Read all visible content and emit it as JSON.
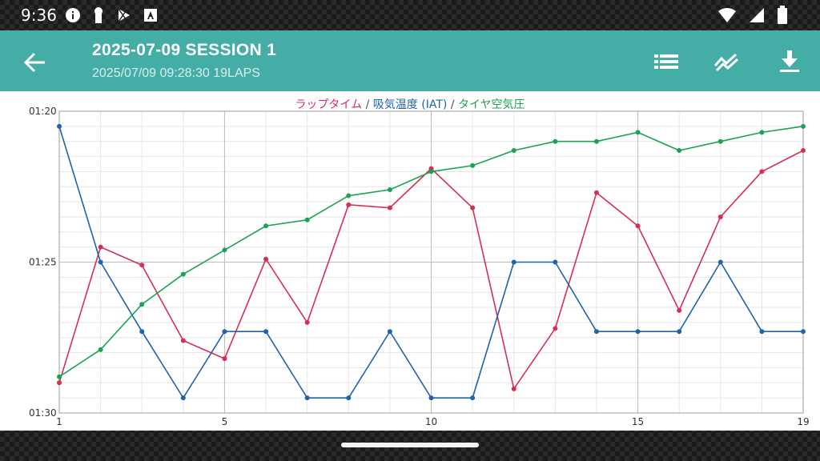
{
  "status": {
    "time": "9:36",
    "left_icons": [
      "info-icon",
      "keyhole-icon",
      "play-store-icon",
      "font-icon"
    ],
    "right_icons": [
      "wifi-icon",
      "signal-icon",
      "battery-icon"
    ]
  },
  "app_bar": {
    "title": "2025-07-09 SESSION 1",
    "subtitle": "2025/07/09 09:28:30 19LAPS",
    "back_icon": "arrow-back-icon",
    "actions": [
      "list-icon",
      "trend-icon",
      "download-icon"
    ]
  },
  "chart_data": {
    "type": "line",
    "title_parts": [
      {
        "text": "ラップタイム",
        "color": "#d42f55"
      },
      {
        "text": " / ",
        "color": "#555555"
      },
      {
        "text": "吸気温度 (IAT)",
        "color": "#1f63a8"
      },
      {
        "text": " / ",
        "color": "#555555"
      },
      {
        "text": "タイヤ空気圧",
        "color": "#1aa353"
      }
    ],
    "x_ticks": [
      "1",
      "5",
      "10",
      "15",
      "19"
    ],
    "x_tick_values": [
      1,
      5,
      10,
      15,
      19
    ],
    "y_ticks": [
      "01:20",
      "01:25",
      "01:30"
    ],
    "y_tick_values": [
      80,
      85,
      90
    ],
    "xlim": [
      1,
      19
    ],
    "ylim": [
      80,
      90
    ],
    "y_inverted": true,
    "grid": true,
    "x": [
      1,
      2,
      3,
      4,
      5,
      6,
      7,
      8,
      9,
      10,
      11,
      12,
      13,
      14,
      15,
      16,
      17,
      18,
      19
    ],
    "series": [
      {
        "name": "ラップタイム",
        "color": "#d42f55",
        "values": [
          89.0,
          84.5,
          85.1,
          87.6,
          88.2,
          84.9,
          87.0,
          83.1,
          83.2,
          81.9,
          83.2,
          89.2,
          87.2,
          82.7,
          83.8,
          86.6,
          83.5,
          82.0,
          81.3
        ]
      },
      {
        "name": "吸気温度 (IAT)",
        "color": "#1f63a8",
        "values": [
          80.5,
          85.0,
          87.3,
          89.5,
          87.3,
          87.3,
          89.5,
          89.5,
          87.3,
          89.5,
          89.5,
          85.0,
          85.0,
          87.3,
          87.3,
          87.3,
          85.0,
          87.3,
          87.3
        ]
      },
      {
        "name": "タイヤ空気圧",
        "color": "#1aa353",
        "values": [
          88.8,
          87.9,
          86.4,
          85.4,
          84.6,
          83.8,
          83.6,
          82.8,
          82.6,
          82.0,
          81.8,
          81.3,
          81.0,
          81.0,
          80.7,
          81.3,
          81.0,
          80.7,
          80.5
        ]
      }
    ]
  }
}
